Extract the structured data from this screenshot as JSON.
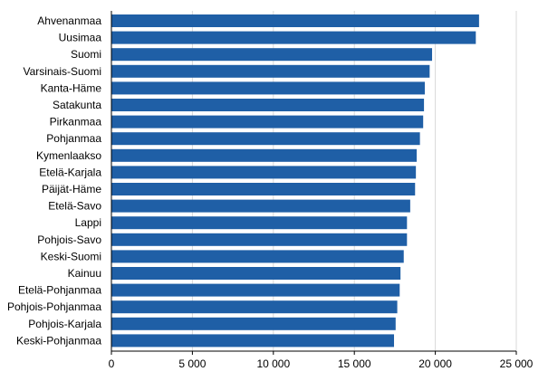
{
  "chart_data": {
    "type": "bar",
    "orientation": "horizontal",
    "title": "",
    "xlabel": "",
    "ylabel": "",
    "categories": [
      "Ahvenanmaa",
      "Uusimaa",
      "Suomi",
      "Varsinais-Suomi",
      "Kanta-Häme",
      "Satakunta",
      "Pirkanmaa",
      "Pohjanmaa",
      "Kymenlaakso",
      "Etelä-Karjala",
      "Päijät-Häme",
      "Etelä-Savo",
      "Lappi",
      "Pohjois-Savo",
      "Keski-Suomi",
      "Kainuu",
      "Etelä-Pohjanmaa",
      "Pohjois-Pohjanmaa",
      "Pohjois-Karjala",
      "Keski-Pohjanmaa"
    ],
    "values": [
      22700,
      22500,
      19800,
      19650,
      19350,
      19300,
      19250,
      19050,
      18850,
      18800,
      18750,
      18450,
      18250,
      18250,
      18050,
      17850,
      17800,
      17650,
      17550,
      17450
    ],
    "xlim": [
      0,
      25000
    ],
    "x_ticks": [
      0,
      5000,
      10000,
      15000,
      20000,
      25000
    ],
    "x_tick_labels": [
      "0",
      "5 000",
      "10 000",
      "15 000",
      "20 000",
      "25 000"
    ],
    "grid": "vertical",
    "legend": "none",
    "bar_color": "#1f5fa6",
    "grid_color": "#d9d9d9",
    "axis_color": "#000000"
  }
}
